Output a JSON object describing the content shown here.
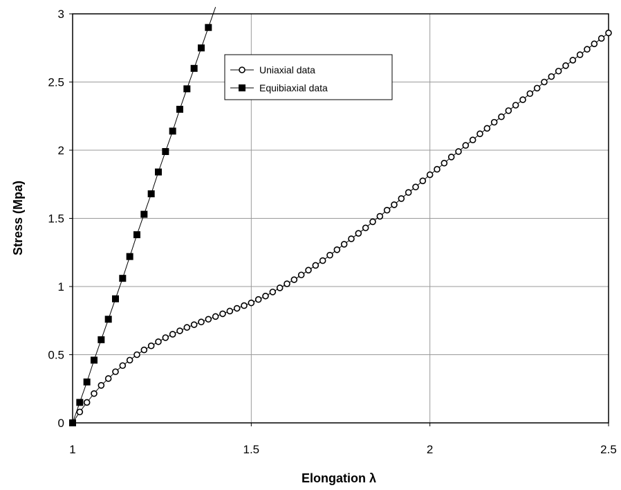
{
  "chart_data": {
    "type": "scatter",
    "title": "",
    "xlabel": "Elongation λ",
    "ylabel": "Stress (Mpa)",
    "xlim": [
      1,
      2.5
    ],
    "ylim": [
      0,
      3
    ],
    "xticks": [
      "1",
      "1.5",
      "2",
      "2.5"
    ],
    "yticks": [
      "0",
      "0.5",
      "1",
      "1.5",
      "2",
      "2.5",
      "3"
    ],
    "grid": true,
    "legend_position": "top-center",
    "series": [
      {
        "name": "Uniaxial data",
        "marker": "open-circle",
        "line": true,
        "x": [
          1.0,
          1.02,
          1.04,
          1.06,
          1.08,
          1.1,
          1.12,
          1.14,
          1.16,
          1.18,
          1.2,
          1.22,
          1.24,
          1.26,
          1.28,
          1.3,
          1.32,
          1.34,
          1.36,
          1.38,
          1.4,
          1.42,
          1.44,
          1.46,
          1.48,
          1.5,
          1.52,
          1.54,
          1.56,
          1.58,
          1.6,
          1.62,
          1.64,
          1.66,
          1.68,
          1.7,
          1.72,
          1.74,
          1.76,
          1.78,
          1.8,
          1.82,
          1.84,
          1.86,
          1.88,
          1.9,
          1.92,
          1.94,
          1.96,
          1.98,
          2.0,
          2.02,
          2.04,
          2.06,
          2.08,
          2.1,
          2.12,
          2.14,
          2.16,
          2.18,
          2.2,
          2.22,
          2.24,
          2.26,
          2.28,
          2.3,
          2.32,
          2.34,
          2.36,
          2.38,
          2.4,
          2.42,
          2.44,
          2.46,
          2.48,
          2.5
        ],
        "y": [
          0.0,
          0.08,
          0.15,
          0.215,
          0.275,
          0.325,
          0.375,
          0.42,
          0.46,
          0.5,
          0.535,
          0.565,
          0.595,
          0.625,
          0.65,
          0.675,
          0.7,
          0.72,
          0.74,
          0.76,
          0.78,
          0.8,
          0.82,
          0.84,
          0.86,
          0.88,
          0.905,
          0.93,
          0.96,
          0.99,
          1.02,
          1.05,
          1.085,
          1.12,
          1.155,
          1.19,
          1.23,
          1.27,
          1.31,
          1.35,
          1.39,
          1.43,
          1.475,
          1.515,
          1.56,
          1.6,
          1.645,
          1.69,
          1.73,
          1.775,
          1.82,
          1.86,
          1.905,
          1.95,
          1.99,
          2.035,
          2.075,
          2.12,
          2.16,
          2.205,
          2.245,
          2.29,
          2.33,
          2.37,
          2.415,
          2.455,
          2.5,
          2.54,
          2.58,
          2.62,
          2.66,
          2.7,
          2.74,
          2.78,
          2.82,
          2.86
        ]
      },
      {
        "name": "Equibiaxial data",
        "marker": "filled-square",
        "line": true,
        "x": [
          1.0,
          1.02,
          1.04,
          1.06,
          1.08,
          1.1,
          1.12,
          1.14,
          1.16,
          1.18,
          1.2,
          1.22,
          1.24,
          1.26,
          1.28,
          1.3,
          1.32,
          1.34,
          1.36,
          1.38
        ],
        "y": [
          0.0,
          0.15,
          0.3,
          0.46,
          0.61,
          0.76,
          0.91,
          1.06,
          1.22,
          1.38,
          1.53,
          1.68,
          1.84,
          1.99,
          2.14,
          2.3,
          2.45,
          2.6,
          2.75,
          2.9
        ],
        "line_extends_to": {
          "x": 1.4,
          "y": 3.05
        }
      }
    ]
  }
}
